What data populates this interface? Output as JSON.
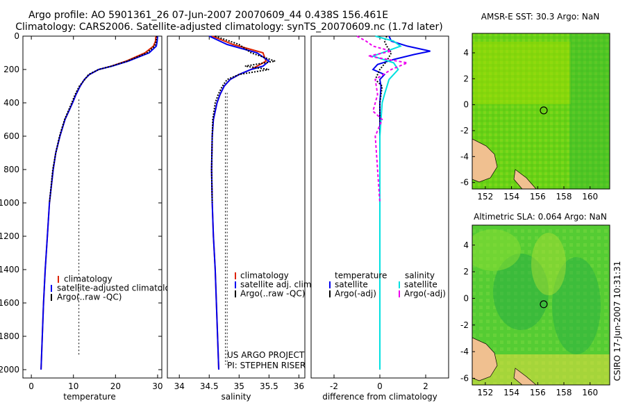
{
  "header": {
    "line1": "Argo profile: AO 5901361_26 07-Jun-2007 20070609_44 0.438S 156.461E",
    "line2": "Climatology: CARS2006. Satellite-adjusted climatology: synTS_20070609.nc (1.7d later)"
  },
  "colors": {
    "climatology": "#dd2200",
    "satellite": "#0000ee",
    "argo": "#000000",
    "salinity_satellite": "#00e0e0",
    "salinity_argo": "#ee00ee",
    "land": "#f0c090"
  },
  "chart_data": [
    {
      "type": "line",
      "id": "temperature",
      "xlabel": "temperature",
      "ylabel": "",
      "xlim": [
        -2,
        31
      ],
      "ylim": [
        2050,
        0
      ],
      "xticks": [
        0,
        10,
        20,
        30
      ],
      "yticks": [
        0,
        200,
        400,
        600,
        800,
        1000,
        1200,
        1400,
        1600,
        1800,
        2000
      ],
      "legend": {
        "entries": [
          "climatology",
          "satellite-adjusted climatology",
          "Argo(..raw -QC)"
        ],
        "placement": "bottom-center"
      },
      "series": [
        {
          "name": "climatology",
          "depth": [
            0,
            30,
            60,
            100,
            150,
            180,
            200,
            230,
            260,
            300,
            350,
            400,
            500,
            600,
            700,
            800,
            1000,
            1200,
            1400,
            1600,
            1800,
            2000
          ],
          "values": [
            29.6,
            29.5,
            29.0,
            27.0,
            22.5,
            19.0,
            16.0,
            13.8,
            12.6,
            11.6,
            10.6,
            9.8,
            8.0,
            6.8,
            5.8,
            5.2,
            4.3,
            3.8,
            3.3,
            2.9,
            2.6,
            2.3
          ]
        },
        {
          "name": "satellite",
          "depth": [
            0,
            30,
            60,
            100,
            150,
            180,
            200,
            230,
            260,
            300,
            350,
            400,
            500,
            600,
            700,
            800,
            1000,
            1200,
            1400,
            1600,
            1800,
            2000
          ],
          "values": [
            30.0,
            29.9,
            29.7,
            28.0,
            23.0,
            19.2,
            16.0,
            13.8,
            12.6,
            11.6,
            10.6,
            9.8,
            8.0,
            6.8,
            5.8,
            5.2,
            4.3,
            3.8,
            3.3,
            2.9,
            2.6,
            2.3
          ]
        },
        {
          "name": "argo",
          "depth": [
            0,
            30,
            60,
            100,
            150,
            180,
            200,
            230,
            260,
            300,
            350,
            400,
            500,
            600,
            700,
            800,
            1000
          ],
          "values": [
            29.8,
            29.7,
            29.3,
            27.5,
            22.8,
            19.0,
            16.0,
            13.6,
            12.7,
            11.4,
            10.4,
            9.6,
            7.9,
            6.7,
            5.8,
            5.1,
            4.3
          ]
        }
      ]
    },
    {
      "type": "line",
      "id": "salinity",
      "xlabel": "salinity",
      "xlim": [
        33.8,
        36.1
      ],
      "ylim": [
        2050,
        0
      ],
      "xticks": [
        34,
        34.5,
        35,
        35.5,
        36
      ],
      "legend": {
        "entries": [
          "climatology",
          "satellite adj. clim.",
          "Argo(..raw -QC)"
        ],
        "placement": "bottom-center"
      },
      "annotation": [
        "US ARGO PROJECT",
        "PI: STEPHEN RISER"
      ],
      "series": [
        {
          "name": "climatology",
          "depth": [
            0,
            50,
            100,
            150,
            180,
            200,
            230,
            260,
            300,
            350,
            400,
            500,
            600,
            800,
            1000,
            1200,
            1400,
            1600,
            1800,
            2000
          ],
          "values": [
            34.55,
            34.9,
            35.4,
            35.45,
            35.3,
            35.2,
            35.0,
            34.85,
            34.75,
            34.68,
            34.63,
            34.57,
            34.55,
            34.54,
            34.55,
            34.57,
            34.6,
            34.62,
            34.64,
            34.66
          ]
        },
        {
          "name": "satellite",
          "depth": [
            0,
            50,
            100,
            150,
            180,
            200,
            230,
            260,
            300,
            350,
            400,
            500,
            600,
            800,
            1000,
            1200,
            1400,
            1600,
            1800,
            2000
          ],
          "values": [
            34.5,
            34.8,
            35.3,
            35.5,
            35.4,
            35.2,
            35.0,
            34.85,
            34.75,
            34.68,
            34.63,
            34.57,
            34.55,
            34.54,
            34.55,
            34.57,
            34.6,
            34.62,
            34.64,
            34.66
          ]
        },
        {
          "name": "argo",
          "depth": [
            0,
            50,
            100,
            150,
            180,
            200,
            230,
            260,
            300,
            350,
            400,
            500,
            600,
            800,
            1000
          ],
          "values": [
            34.6,
            35.0,
            35.2,
            35.6,
            35.1,
            35.5,
            35.0,
            34.8,
            34.72,
            34.65,
            34.6,
            34.56,
            34.55,
            34.54,
            34.55
          ]
        }
      ]
    },
    {
      "type": "line",
      "id": "difference",
      "xlabel": "difference from climatology",
      "xlim": [
        -3,
        3
      ],
      "ylim": [
        2050,
        0
      ],
      "xticks": [
        -2,
        0,
        2
      ],
      "legend": {
        "temperature_title": "temperature",
        "salinity_title": "salinity",
        "entries": [
          "satellite",
          "Argo(-adj)",
          "satellite",
          "Argo(-adj)"
        ],
        "placement": "bottom"
      },
      "series": [
        {
          "name": "temperature satellite",
          "depth": [
            0,
            30,
            60,
            90,
            110,
            140,
            170,
            200,
            230,
            260,
            300,
            400,
            600,
            1000,
            1500,
            2000
          ],
          "values": [
            0.4,
            0.5,
            1.2,
            2.2,
            1.5,
            0.6,
            -0.1,
            -0.3,
            0.2,
            0,
            0.05,
            0,
            0,
            0,
            0,
            0
          ]
        },
        {
          "name": "temperature argo",
          "depth": [
            0,
            30,
            60,
            100,
            150,
            200,
            260,
            300,
            400,
            600,
            1000
          ],
          "values": [
            0.3,
            0.2,
            0.3,
            0.5,
            0.3,
            0,
            -0.2,
            0.1,
            0,
            0,
            0
          ]
        },
        {
          "name": "salinity satellite",
          "depth": [
            0,
            30,
            60,
            90,
            120,
            160,
            200,
            260,
            350,
            400,
            600,
            1000,
            1500,
            2000
          ],
          "values": [
            -0.2,
            0.6,
            0.9,
            0.3,
            -0.3,
            0.6,
            0.8,
            0.4,
            0.2,
            0.1,
            0,
            0,
            0,
            0
          ]
        },
        {
          "name": "salinity argo",
          "depth": [
            0,
            30,
            60,
            90,
            120,
            160,
            200,
            260,
            350,
            450,
            500,
            600,
            1000
          ],
          "values": [
            -1.0,
            -0.6,
            -0.3,
            0.5,
            -0.5,
            1.2,
            0.5,
            -0.2,
            -0.1,
            -0.3,
            0.1,
            -0.2,
            0
          ]
        }
      ]
    },
    {
      "type": "heatmap",
      "id": "sst",
      "title": "AMSR-E SST: 30.3 Argo: NaN",
      "xlim": [
        151,
        161.5
      ],
      "ylim": [
        -6.5,
        5.5
      ],
      "xticks": [
        152,
        154,
        156,
        158,
        160
      ],
      "yticks": [
        -6,
        -4,
        -2,
        0,
        2,
        4
      ],
      "marker": {
        "lon": 156.46,
        "lat": -0.44
      }
    },
    {
      "type": "heatmap",
      "id": "sla",
      "title": "Altimetric SLA: 0.064 Argo: NaN",
      "xlim": [
        151,
        161.5
      ],
      "ylim": [
        -6.5,
        5.5
      ],
      "xticks": [
        152,
        154,
        156,
        158,
        160
      ],
      "yticks": [
        -6,
        -4,
        -2,
        0,
        2,
        4
      ],
      "marker": {
        "lon": 156.46,
        "lat": -0.44
      }
    }
  ],
  "footer": {
    "stamp": "CSIRO 17-Jun-2007 10:31:31"
  }
}
